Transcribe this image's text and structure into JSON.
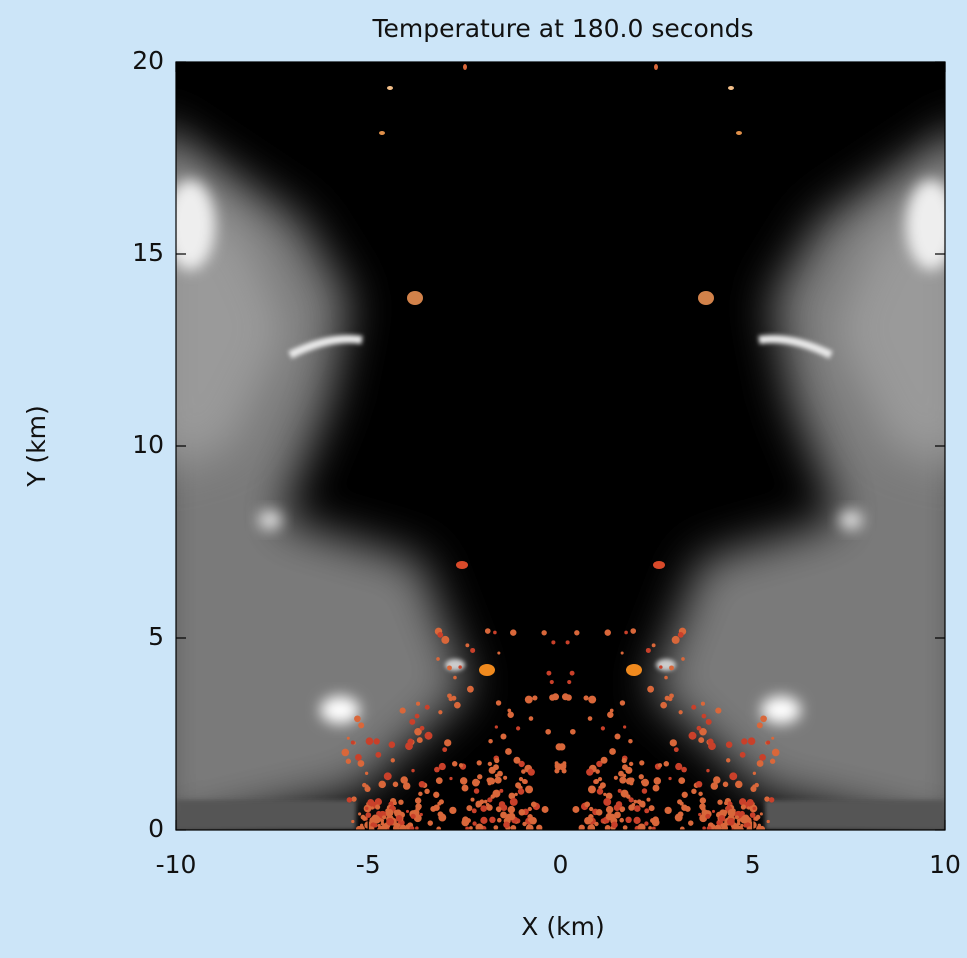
{
  "chart_data": {
    "type": "image",
    "title": "Temperature at 180.0 seconds",
    "x_label": "X (km)",
    "y_label": "Y (km)",
    "xlim": [
      -10,
      10
    ],
    "ylim": [
      0,
      20
    ],
    "xticks": [
      -10,
      -5,
      0,
      5,
      10
    ],
    "yticks": [
      0,
      5,
      10,
      15,
      20
    ]
  }
}
